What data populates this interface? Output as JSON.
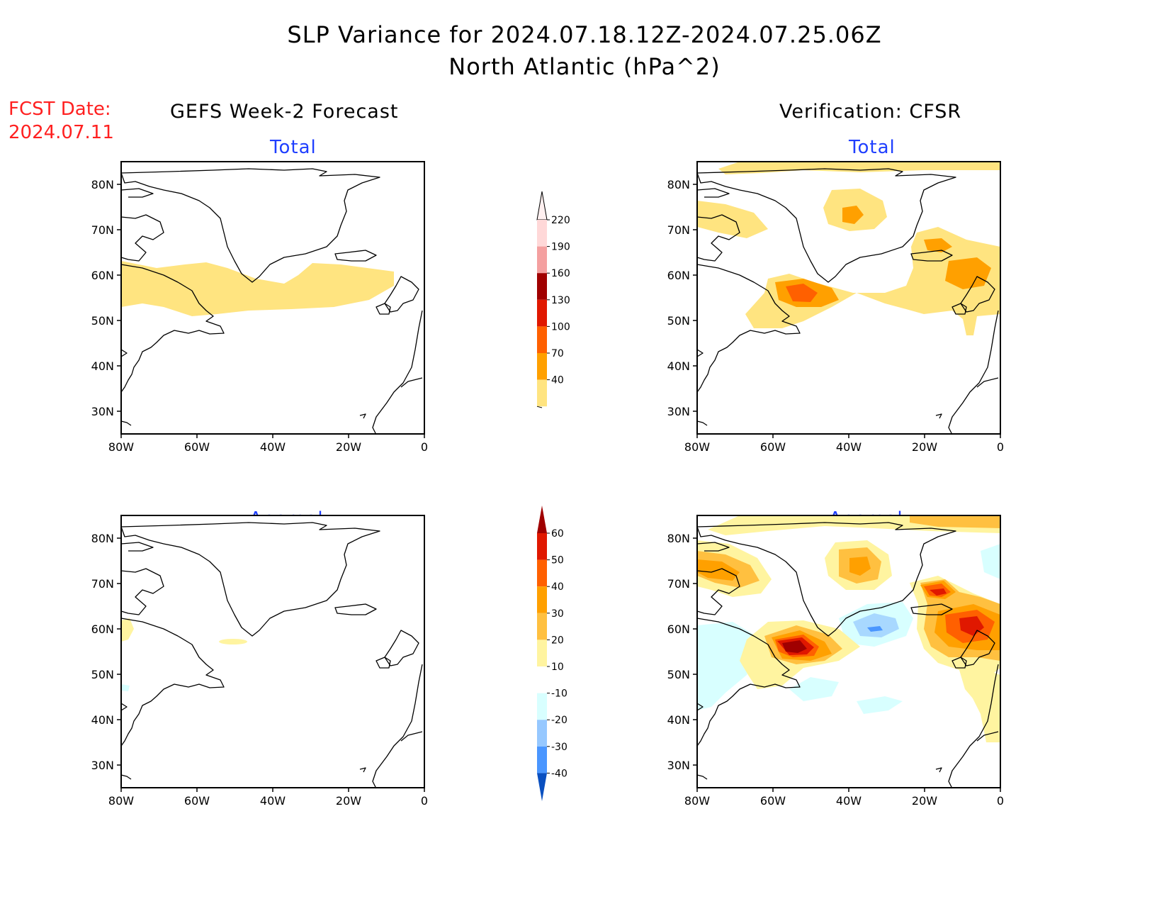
{
  "title_line1": "SLP Variance for 2024.07.18.12Z-2024.07.25.06Z",
  "title_line2": "North Atlantic (hPa^2)",
  "fcst_label": "FCST Date:",
  "fcst_date": "2024.07.11",
  "left_header": "GEFS Week-2 Forecast",
  "right_header": "Verification: CFSR",
  "panel_total": "Total",
  "panel_anomaly": "Anomaly",
  "lat_labels": [
    "80N",
    "70N",
    "60N",
    "50N",
    "40N",
    "30N"
  ],
  "lon_labels": [
    "80W",
    "60W",
    "40W",
    "20W",
    "0"
  ],
  "total_scale": {
    "levels": [
      "220",
      "190",
      "160",
      "130",
      "100",
      "70",
      "40"
    ],
    "colors": [
      "#ffd8d8",
      "#f4a0a0",
      "#a00000",
      "#e01800",
      "#ff6000",
      "#ffa000",
      "#ffe480"
    ]
  },
  "anomaly_scale": {
    "levels": [
      "60",
      "50",
      "40",
      "30",
      "20",
      "10",
      "-10",
      "-20",
      "-30",
      "-40"
    ],
    "colors": [
      "#a00000",
      "#e01800",
      "#ff6000",
      "#ffa000",
      "#ffc040",
      "#fff4a0",
      "#ffffff",
      "#d8ffff",
      "#96c8ff",
      "#4a96ff",
      "#1060e0",
      "#0a50c0"
    ]
  }
}
